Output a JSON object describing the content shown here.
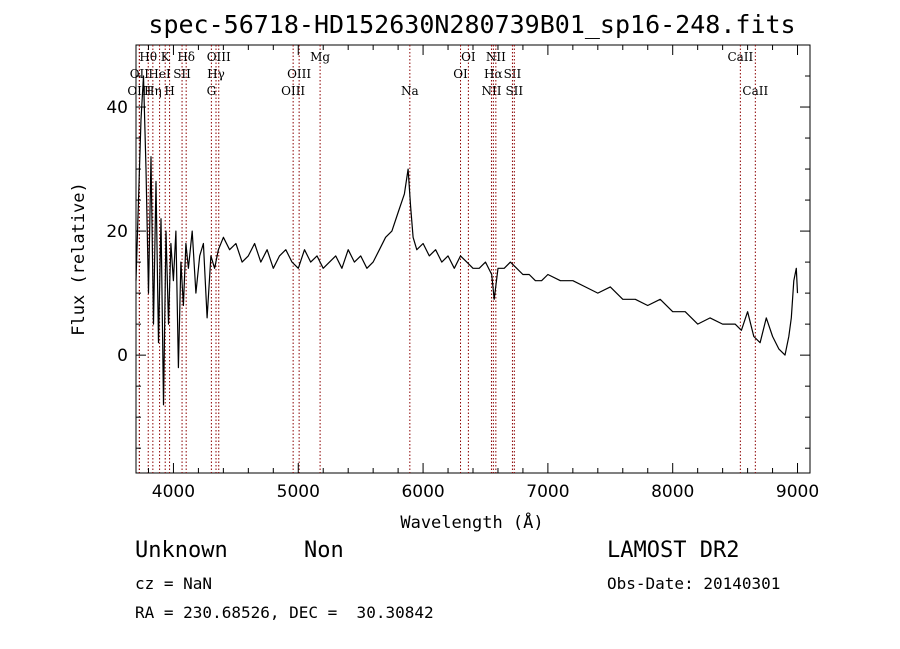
{
  "chart_data": {
    "type": "line",
    "title": "spec-56718-HD152630N280739B01_sp16-248.fits",
    "xlabel": "Wavelength (Å)",
    "ylabel": "Flux (relative)",
    "xlim": [
      3700,
      9100
    ],
    "ylim": [
      -19,
      50
    ],
    "xticks": [
      4000,
      5000,
      6000,
      7000,
      8000,
      9000
    ],
    "yticks": [
      0,
      20,
      40
    ],
    "x": [
      3700,
      3720,
      3740,
      3760,
      3780,
      3800,
      3820,
      3840,
      3860,
      3880,
      3900,
      3920,
      3940,
      3960,
      3980,
      4000,
      4020,
      4040,
      4060,
      4080,
      4100,
      4120,
      4150,
      4180,
      4210,
      4240,
      4270,
      4300,
      4330,
      4360,
      4400,
      4450,
      4500,
      4550,
      4600,
      4650,
      4700,
      4750,
      4800,
      4850,
      4900,
      4950,
      5000,
      5050,
      5100,
      5150,
      5200,
      5250,
      5300,
      5350,
      5400,
      5450,
      5500,
      5550,
      5600,
      5650,
      5700,
      5750,
      5800,
      5850,
      5880,
      5900,
      5920,
      5950,
      6000,
      6050,
      6100,
      6150,
      6200,
      6250,
      6300,
      6350,
      6400,
      6450,
      6500,
      6550,
      6570,
      6600,
      6650,
      6700,
      6750,
      6800,
      6850,
      6900,
      6950,
      7000,
      7100,
      7200,
      7300,
      7400,
      7500,
      7600,
      7700,
      7800,
      7900,
      8000,
      8100,
      8200,
      8300,
      8400,
      8500,
      8550,
      8600,
      8650,
      8700,
      8750,
      8800,
      8850,
      8900,
      8930,
      8950,
      8970,
      8990,
      9000
    ],
    "series": [
      {
        "values": [
          12,
          25,
          38,
          45,
          30,
          10,
          32,
          5,
          28,
          2,
          22,
          -8,
          20,
          5,
          18,
          12,
          20,
          -2,
          15,
          8,
          18,
          14,
          20,
          10,
          16,
          18,
          6,
          16,
          14,
          17,
          19,
          17,
          18,
          15,
          16,
          18,
          15,
          17,
          14,
          16,
          17,
          15,
          14,
          17,
          15,
          16,
          14,
          15,
          16,
          14,
          17,
          15,
          16,
          14,
          15,
          17,
          19,
          20,
          23,
          26,
          30,
          24,
          19,
          17,
          18,
          16,
          17,
          15,
          16,
          14,
          16,
          15,
          14,
          14,
          15,
          13,
          9,
          14,
          14,
          15,
          14,
          13,
          13,
          12,
          12,
          13,
          12,
          12,
          11,
          10,
          11,
          9,
          9,
          8,
          9,
          7,
          7,
          5,
          6,
          5,
          5,
          4,
          7,
          3,
          2,
          6,
          3,
          1,
          0,
          3,
          6,
          12,
          14,
          10
        ]
      }
    ],
    "grid": false,
    "line_color": "#000000",
    "marker_color": "#8b0000",
    "spectral_lines": [
      {
        "label": "OII",
        "x": 3727,
        "row": 1
      },
      {
        "label": "OIII",
        "x": 3727,
        "row": 2
      },
      {
        "label": "Hθ",
        "x": 3798,
        "row": 0
      },
      {
        "label": "Hη",
        "x": 3835,
        "row": 2
      },
      {
        "label": "HeI",
        "x": 3889,
        "row": 1
      },
      {
        "label": "K",
        "x": 3934,
        "row": 0
      },
      {
        "label": "H",
        "x": 3969,
        "row": 2
      },
      {
        "label": "SII",
        "x": 4069,
        "row": 1
      },
      {
        "label": "Hδ",
        "x": 4102,
        "row": 0
      },
      {
        "label": "G",
        "x": 4304,
        "row": 2
      },
      {
        "label": "Hγ",
        "x": 4341,
        "row": 1
      },
      {
        "label": "OIII",
        "x": 4363,
        "row": 0
      },
      {
        "label": "OIII",
        "x": 4959,
        "row": 2
      },
      {
        "label": "OIII",
        "x": 5007,
        "row": 1
      },
      {
        "label": "Mg",
        "x": 5175,
        "row": 0
      },
      {
        "label": "Na",
        "x": 5894,
        "row": 2
      },
      {
        "label": "OI",
        "x": 6300,
        "row": 1
      },
      {
        "label": "OI",
        "x": 6363,
        "row": 0
      },
      {
        "label": "NII",
        "x": 6548,
        "row": 2
      },
      {
        "label": "Hα",
        "x": 6563,
        "row": 1
      },
      {
        "label": "NII",
        "x": 6583,
        "row": 0
      },
      {
        "label": "SII",
        "x": 6716,
        "row": 1
      },
      {
        "label": "SII",
        "x": 6731,
        "row": 2
      },
      {
        "label": "CaII",
        "x": 8542,
        "row": 0
      },
      {
        "label": "CaII",
        "x": 8662,
        "row": 2
      }
    ]
  },
  "info": {
    "class": "Unknown",
    "subclass": "Non",
    "survey": "LAMOST DR2",
    "cz": "cz = NaN",
    "obs_date": "Obs-Date: 20140301",
    "coords": "RA = 230.68526, DEC =  30.30842"
  }
}
